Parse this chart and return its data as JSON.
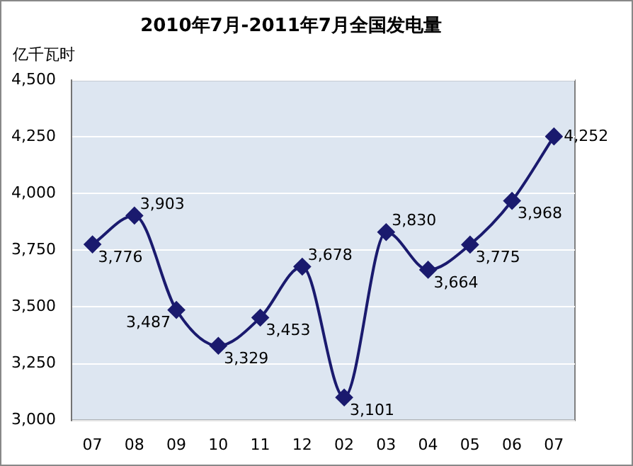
{
  "chart_data": {
    "type": "line",
    "title": "2010年7月-2011年7月全国发电量",
    "ylabel": "亿千瓦时",
    "categories": [
      "07",
      "08",
      "09",
      "10",
      "11",
      "12",
      "02",
      "03",
      "04",
      "05",
      "06",
      "07"
    ],
    "series": [
      {
        "color": "#1a1a6e",
        "values": [
          3776,
          3903,
          3487,
          3329,
          3453,
          3678,
          3101,
          3830,
          3664,
          3775,
          3968,
          4252
        ],
        "value_labels": [
          "3,776",
          "3,903",
          "3,487",
          "3,329",
          "3,453",
          "3,678",
          "3,101",
          "3,830",
          "3,664",
          "3,775",
          "3,968",
          "4,252"
        ]
      }
    ],
    "ylim": [
      3000,
      4500
    ],
    "yticks": [
      {
        "value": 3000,
        "label": "3,000"
      },
      {
        "value": 3250,
        "label": "3,250"
      },
      {
        "value": 3500,
        "label": "3,500"
      },
      {
        "value": 3750,
        "label": "3,750"
      },
      {
        "value": 4000,
        "label": "4,000"
      },
      {
        "value": 4250,
        "label": "4,250"
      },
      {
        "value": 4500,
        "label": "4,500"
      }
    ],
    "grid": "y",
    "marker": "diamond",
    "legend": false
  }
}
